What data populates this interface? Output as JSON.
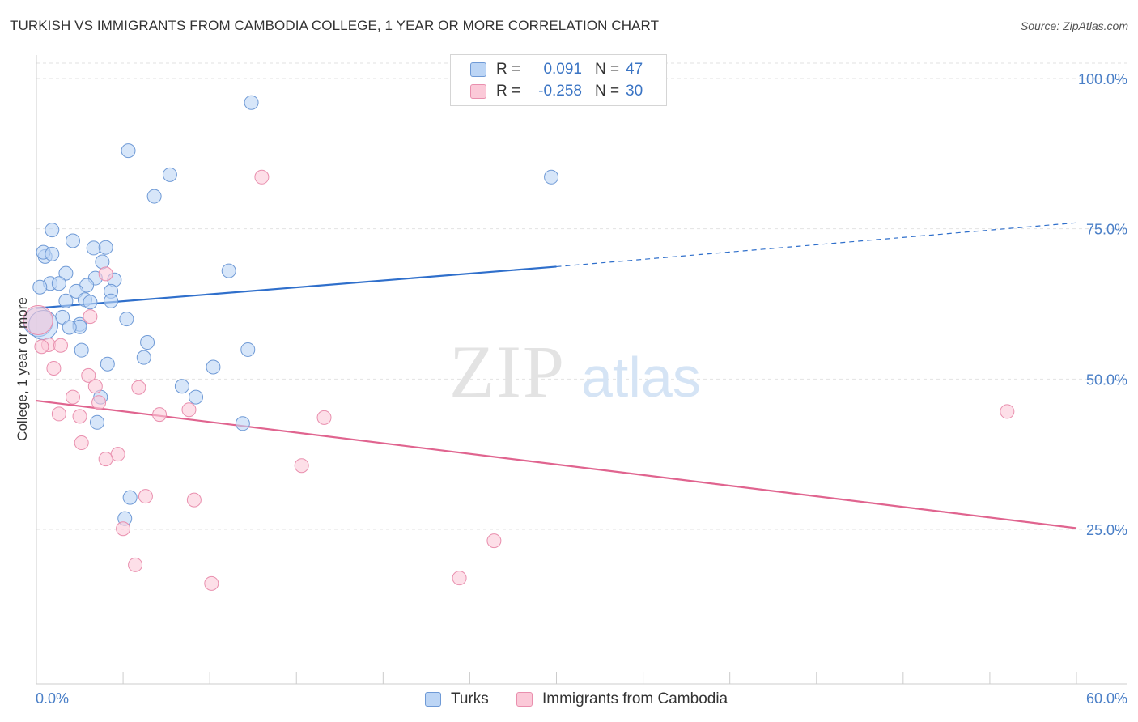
{
  "header": {
    "title": "TURKISH VS IMMIGRANTS FROM CAMBODIA COLLEGE, 1 YEAR OR MORE CORRELATION CHART",
    "source": "Source: ZipAtlas.com"
  },
  "legend": {
    "rows": [
      {
        "r_label": "R =",
        "r_value": "0.091",
        "n_label": "N =",
        "n_value": "47"
      },
      {
        "r_label": "R =",
        "r_value": "-0.258",
        "n_label": "N =",
        "n_value": "30"
      }
    ]
  },
  "bottom_legend": [
    "Turks",
    "Immigrants from Cambodia"
  ],
  "watermark": {
    "zip": "ZIP",
    "atlas": "atlas"
  },
  "chart_data": {
    "type": "scatter",
    "title": "TURKISH VS IMMIGRANTS FROM CAMBODIA COLLEGE, 1 YEAR OR MORE CORRELATION CHART",
    "xlabel": "",
    "ylabel": "College, 1 year or more",
    "xlim": [
      0,
      60
    ],
    "ylim": [
      0,
      105
    ],
    "x_ticks": [
      "0.0%",
      "60.0%"
    ],
    "y_ticks": [
      "100.0%",
      "75.0%",
      "50.0%",
      "25.0%"
    ],
    "y_tick_values": [
      100,
      75,
      50,
      25
    ],
    "grid": true,
    "legend_position": "top-center",
    "colors": {
      "turks": "#6f9ad6",
      "turks_fill": "#bcd5f5",
      "cambodia": "#e98fae",
      "cambodia_fill": "#fbc9d8",
      "turks_line": "#2f6fcb",
      "cambodia_line": "#e0648f"
    },
    "series": [
      {
        "name": "Turks",
        "points": [
          [
            12.4,
            96.0
          ],
          [
            5.3,
            88.0
          ],
          [
            7.7,
            84.0
          ],
          [
            6.8,
            80.4
          ],
          [
            29.7,
            83.6
          ],
          [
            0.9,
            74.8
          ],
          [
            2.1,
            73.0
          ],
          [
            3.3,
            71.8
          ],
          [
            4.0,
            71.9
          ],
          [
            0.5,
            70.4
          ],
          [
            0.4,
            71.1
          ],
          [
            0.9,
            70.8
          ],
          [
            3.8,
            69.5
          ],
          [
            11.1,
            68.0
          ],
          [
            1.7,
            67.6
          ],
          [
            3.4,
            66.8
          ],
          [
            4.5,
            66.5
          ],
          [
            0.8,
            65.9
          ],
          [
            1.3,
            65.9
          ],
          [
            2.9,
            65.6
          ],
          [
            0.2,
            65.3
          ],
          [
            2.3,
            64.6
          ],
          [
            4.3,
            64.6
          ],
          [
            2.8,
            63.2
          ],
          [
            1.7,
            63.0
          ],
          [
            4.3,
            63.0
          ],
          [
            3.1,
            62.8
          ],
          [
            5.2,
            60.0
          ],
          [
            1.5,
            60.3
          ],
          [
            2.5,
            59.1
          ],
          [
            2.5,
            58.7
          ],
          [
            1.9,
            58.6
          ],
          [
            6.4,
            56.1
          ],
          [
            2.6,
            54.8
          ],
          [
            12.2,
            54.9
          ],
          [
            6.2,
            53.6
          ],
          [
            4.1,
            52.5
          ],
          [
            10.2,
            52.0
          ],
          [
            8.4,
            48.8
          ],
          [
            9.2,
            47.0
          ],
          [
            3.7,
            47.0
          ],
          [
            3.5,
            42.8
          ],
          [
            11.9,
            42.6
          ],
          [
            5.4,
            30.3
          ],
          [
            5.1,
            26.8
          ],
          [
            0.1,
            59.5
          ],
          [
            0.4,
            59.0
          ]
        ]
      },
      {
        "name": "Immigrants from Cambodia",
        "points": [
          [
            13.0,
            83.6
          ],
          [
            4.0,
            67.5
          ],
          [
            3.1,
            60.4
          ],
          [
            0.7,
            55.7
          ],
          [
            1.4,
            55.6
          ],
          [
            0.3,
            55.4
          ],
          [
            1.0,
            51.8
          ],
          [
            3.0,
            50.6
          ],
          [
            3.4,
            48.8
          ],
          [
            5.9,
            48.6
          ],
          [
            2.1,
            47.0
          ],
          [
            3.6,
            46.1
          ],
          [
            8.8,
            44.9
          ],
          [
            1.3,
            44.2
          ],
          [
            2.5,
            43.8
          ],
          [
            7.1,
            44.1
          ],
          [
            16.6,
            43.6
          ],
          [
            56.0,
            44.6
          ],
          [
            2.6,
            39.4
          ],
          [
            4.7,
            37.5
          ],
          [
            4.0,
            36.7
          ],
          [
            15.3,
            35.6
          ],
          [
            6.3,
            30.5
          ],
          [
            9.1,
            29.9
          ],
          [
            5.0,
            25.1
          ],
          [
            26.4,
            23.1
          ],
          [
            5.7,
            19.1
          ],
          [
            24.4,
            16.9
          ],
          [
            10.1,
            16.0
          ],
          [
            0.1,
            59.8
          ]
        ]
      }
    ],
    "trendlines": [
      {
        "name": "Turks",
        "x": [
          0,
          30
        ],
        "y": [
          61.8,
          68.7
        ],
        "dashed_extension_to": [
          60,
          76.0
        ]
      },
      {
        "name": "Immigrants from Cambodia",
        "x": [
          0,
          60
        ],
        "y": [
          46.4,
          25.2
        ]
      }
    ]
  }
}
